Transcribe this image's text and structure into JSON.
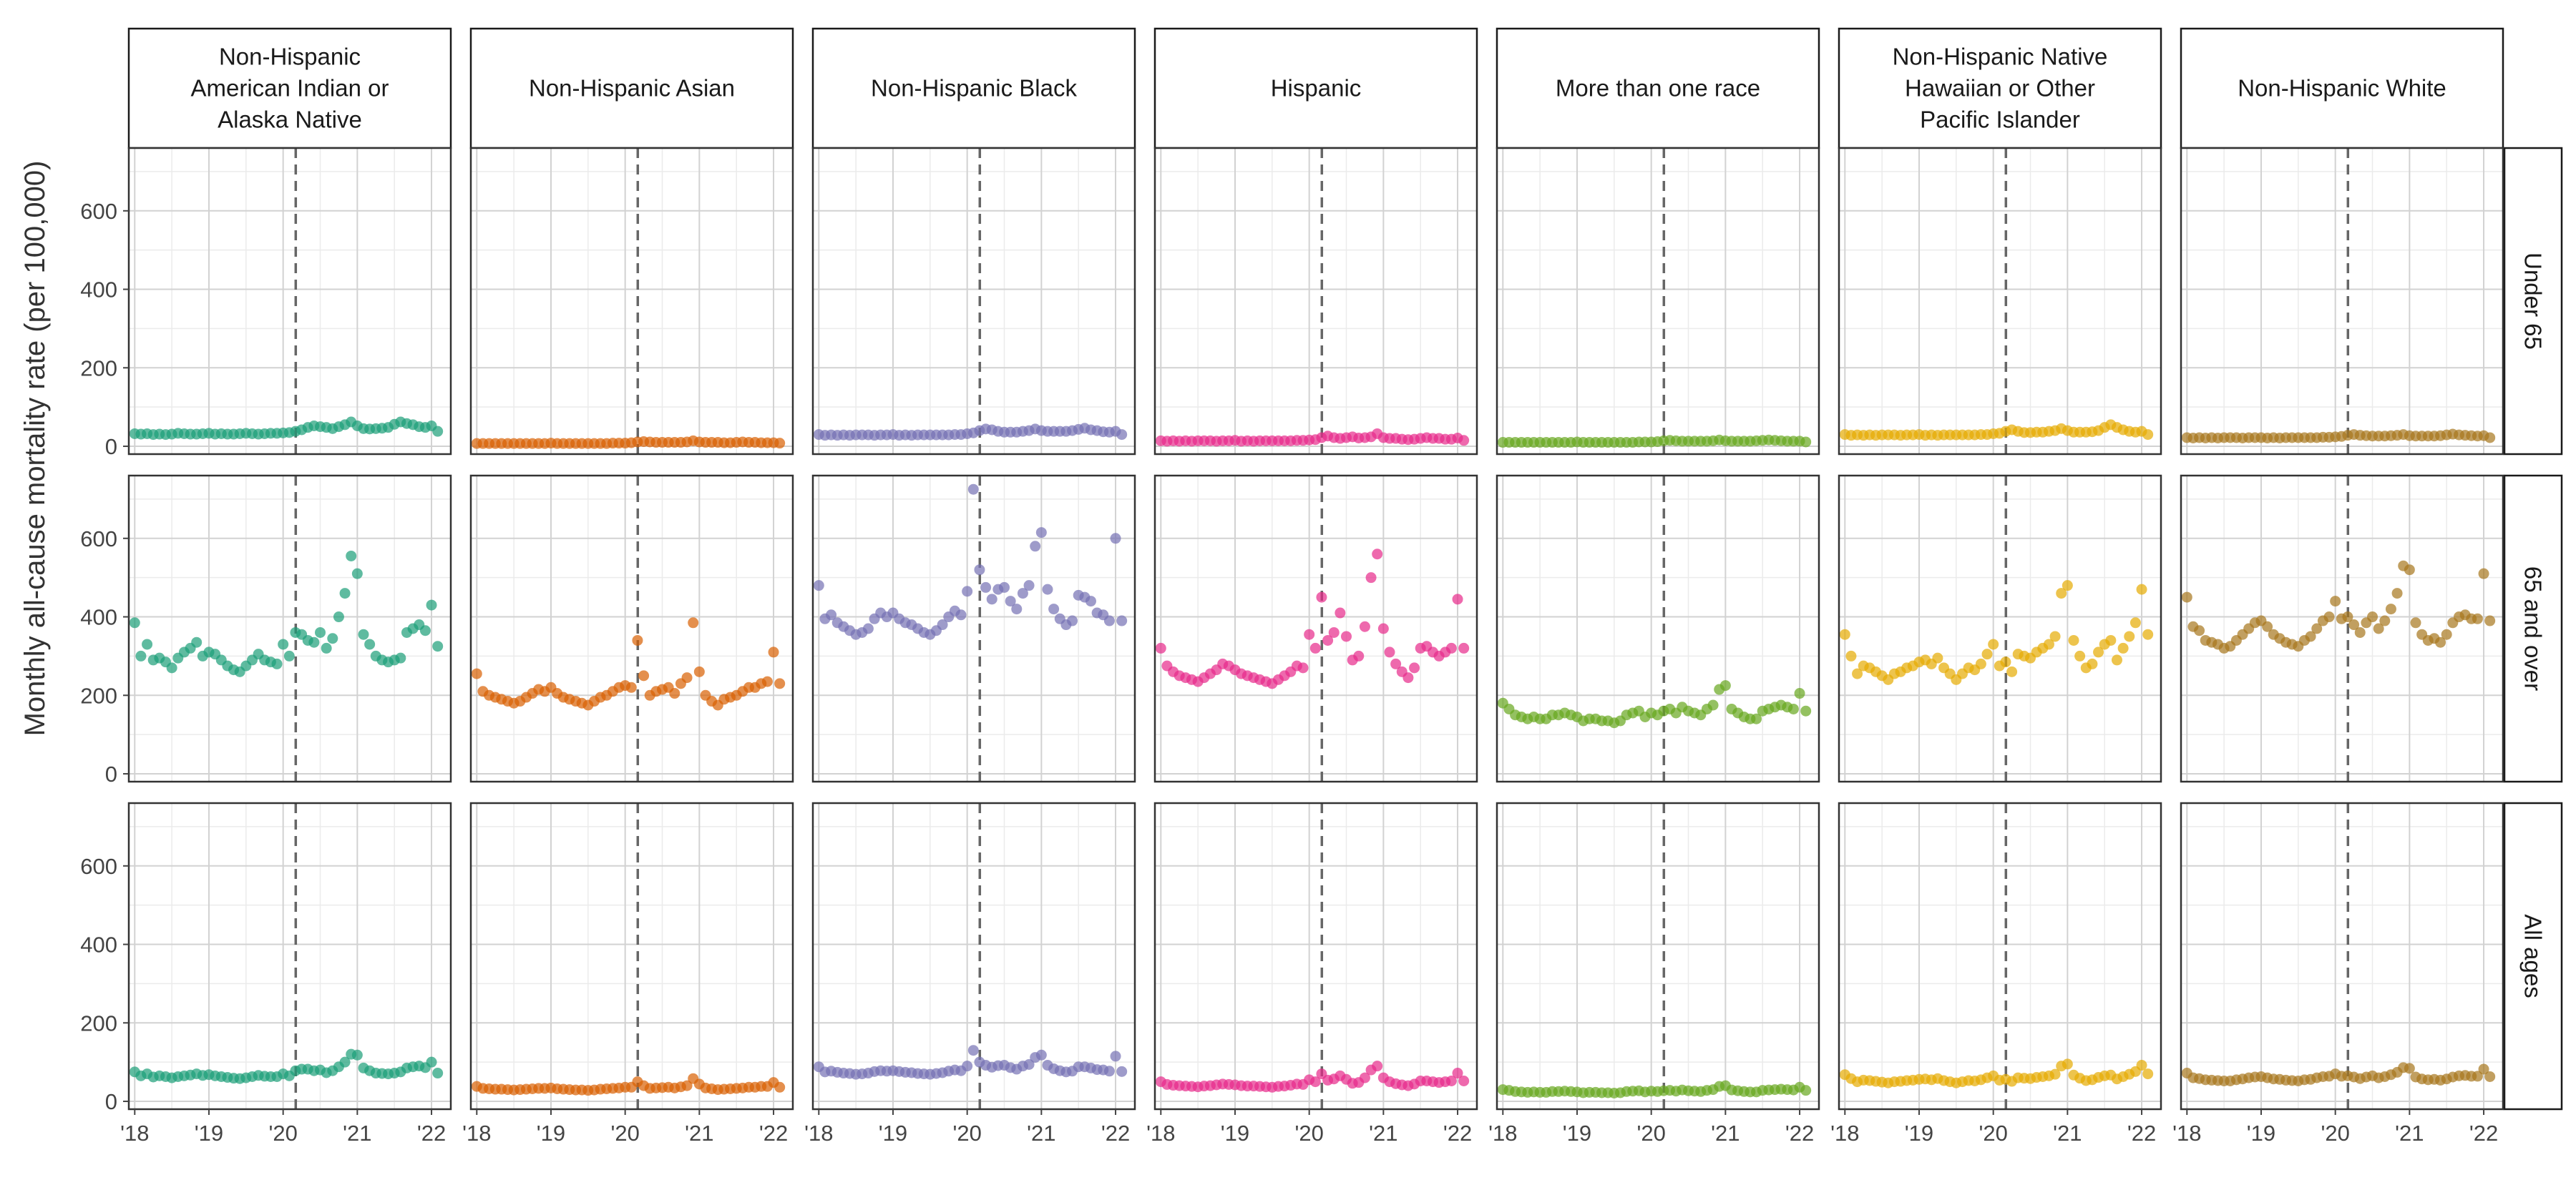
{
  "chart_data": {
    "type": "scatter",
    "layout": "facet-grid",
    "title": "",
    "ylabel": "Monthly all-cause mortality rate (per 100,000)",
    "xlabel": "",
    "ylim": [
      -20,
      760
    ],
    "yticks": [
      0,
      200,
      400,
      600
    ],
    "xlim": [
      2017.92,
      2022.26
    ],
    "xticks": [
      {
        "value": 2018,
        "label": "'18"
      },
      {
        "value": 2019,
        "label": "'19"
      },
      {
        "value": 2020,
        "label": "'20"
      },
      {
        "value": 2021,
        "label": "'21"
      },
      {
        "value": 2022,
        "label": "'22"
      }
    ],
    "vline": {
      "x": 2020.17,
      "style": "dashed"
    },
    "grid": true,
    "x_start": "2018-01",
    "x_step": "month",
    "columns": [
      {
        "label": "Non-Hispanic American Indian or Alaska Native",
        "lines": [
          "Non-Hispanic",
          "American Indian or",
          "Alaska Native"
        ],
        "color": "#1b9e77"
      },
      {
        "label": "Non-Hispanic Asian",
        "lines": [
          "Non-Hispanic Asian"
        ],
        "color": "#d95f02"
      },
      {
        "label": "Non-Hispanic Black",
        "lines": [
          "Non-Hispanic Black"
        ],
        "color": "#7570b3"
      },
      {
        "label": "Hispanic",
        "lines": [
          "Hispanic"
        ],
        "color": "#e7298a"
      },
      {
        "label": "More than one race",
        "lines": [
          "More than one race"
        ],
        "color": "#66a61e"
      },
      {
        "label": "Non-Hispanic Native Hawaiian or Other Pacific Islander",
        "lines": [
          "Non-Hispanic Native",
          "Hawaiian or Other",
          "Pacific Islander"
        ],
        "color": "#e6ab02"
      },
      {
        "label": "Non-Hispanic White",
        "lines": [
          "Non-Hispanic White"
        ],
        "color": "#a6761d"
      }
    ],
    "rows": [
      {
        "label": "Under 65"
      },
      {
        "label": "65 and over"
      },
      {
        "label": "All ages"
      }
    ],
    "panels": [
      [
        [
          32,
          31,
          32,
          30,
          31,
          30,
          31,
          33,
          32,
          31,
          31,
          32,
          33,
          31,
          32,
          31,
          31,
          32,
          33,
          32,
          31,
          32,
          33,
          33,
          34,
          35,
          38,
          42,
          48,
          52,
          50,
          48,
          45,
          50,
          55,
          62,
          52,
          45,
          44,
          45,
          46,
          48,
          56,
          62,
          58,
          55,
          50,
          48,
          52,
          38
        ],
        [
          7,
          7,
          7,
          7,
          7,
          7,
          7,
          7,
          7,
          7,
          7,
          7,
          8,
          7,
          7,
          7,
          7,
          7,
          7,
          7,
          7,
          7,
          8,
          8,
          8,
          9,
          11,
          12,
          11,
          10,
          10,
          10,
          10,
          10,
          11,
          14,
          11,
          10,
          10,
          10,
          9,
          9,
          10,
          11,
          10,
          10,
          9,
          9,
          9,
          8
        ],
        [
          30,
          28,
          29,
          28,
          29,
          28,
          29,
          29,
          29,
          28,
          29,
          29,
          30,
          28,
          29,
          28,
          29,
          29,
          29,
          29,
          29,
          29,
          30,
          30,
          32,
          34,
          40,
          44,
          42,
          38,
          36,
          36,
          36,
          38,
          40,
          44,
          40,
          38,
          38,
          38,
          38,
          40,
          43,
          46,
          42,
          40,
          37,
          36,
          38,
          30
        ],
        [
          14,
          13,
          14,
          13,
          14,
          13,
          14,
          14,
          14,
          13,
          14,
          14,
          15,
          13,
          14,
          13,
          14,
          14,
          14,
          14,
          14,
          14,
          15,
          15,
          16,
          17,
          22,
          26,
          22,
          20,
          22,
          24,
          21,
          22,
          24,
          32,
          22,
          20,
          20,
          18,
          17,
          18,
          20,
          22,
          20,
          20,
          18,
          18,
          21,
          15
        ],
        [
          10,
          10,
          10,
          10,
          10,
          10,
          10,
          10,
          10,
          10,
          10,
          10,
          11,
          10,
          10,
          10,
          10,
          10,
          10,
          10,
          10,
          10,
          11,
          11,
          11,
          12,
          14,
          15,
          14,
          13,
          13,
          13,
          13,
          13,
          14,
          16,
          14,
          13,
          13,
          13,
          13,
          14,
          15,
          16,
          15,
          14,
          13,
          13,
          13,
          11
        ],
        [
          30,
          28,
          29,
          28,
          29,
          28,
          29,
          29,
          29,
          28,
          29,
          29,
          30,
          28,
          29,
          28,
          29,
          29,
          29,
          29,
          29,
          29,
          30,
          30,
          32,
          33,
          38,
          42,
          38,
          35,
          35,
          36,
          36,
          38,
          40,
          45,
          40,
          36,
          36,
          36,
          37,
          40,
          48,
          55,
          48,
          42,
          38,
          36,
          38,
          30
        ],
        [
          22,
          21,
          22,
          21,
          22,
          21,
          22,
          22,
          22,
          21,
          22,
          22,
          22,
          21,
          22,
          21,
          22,
          22,
          22,
          22,
          22,
          22,
          23,
          23,
          24,
          25,
          28,
          30,
          28,
          27,
          26,
          26,
          26,
          27,
          28,
          30,
          27,
          26,
          26,
          26,
          26,
          27,
          29,
          31,
          29,
          28,
          27,
          26,
          27,
          22
        ]
      ],
      [
        [
          385,
          300,
          330,
          290,
          295,
          285,
          270,
          295,
          310,
          320,
          335,
          300,
          310,
          305,
          290,
          275,
          265,
          260,
          275,
          290,
          305,
          290,
          285,
          280,
          330,
          300,
          360,
          355,
          340,
          335,
          360,
          320,
          345,
          400,
          460,
          555,
          510,
          355,
          330,
          300,
          290,
          285,
          290,
          295,
          360,
          370,
          380,
          365,
          430,
          325
        ],
        [
          255,
          210,
          200,
          195,
          190,
          185,
          180,
          185,
          195,
          205,
          215,
          210,
          220,
          205,
          195,
          190,
          185,
          180,
          175,
          185,
          195,
          200,
          210,
          220,
          225,
          220,
          340,
          250,
          200,
          210,
          215,
          220,
          205,
          230,
          245,
          385,
          260,
          200,
          185,
          175,
          190,
          195,
          200,
          210,
          220,
          220,
          230,
          235,
          310,
          230
        ],
        [
          480,
          395,
          405,
          385,
          375,
          365,
          355,
          360,
          370,
          395,
          410,
          400,
          410,
          395,
          385,
          380,
          370,
          360,
          355,
          365,
          380,
          400,
          415,
          405,
          465,
          725,
          520,
          475,
          445,
          470,
          475,
          440,
          420,
          460,
          480,
          580,
          615,
          470,
          420,
          395,
          380,
          390,
          455,
          450,
          440,
          410,
          405,
          390,
          600,
          390
        ],
        [
          320,
          275,
          260,
          250,
          245,
          240,
          235,
          245,
          255,
          265,
          280,
          275,
          265,
          255,
          250,
          245,
          240,
          235,
          230,
          240,
          250,
          260,
          275,
          270,
          355,
          320,
          450,
          340,
          360,
          410,
          350,
          290,
          300,
          375,
          500,
          560,
          370,
          310,
          280,
          260,
          245,
          270,
          320,
          325,
          310,
          300,
          310,
          320,
          445,
          320
        ],
        [
          180,
          165,
          150,
          145,
          140,
          145,
          140,
          140,
          150,
          150,
          155,
          150,
          145,
          135,
          140,
          140,
          135,
          135,
          130,
          135,
          150,
          155,
          160,
          145,
          155,
          150,
          160,
          165,
          155,
          170,
          160,
          155,
          150,
          165,
          175,
          215,
          225,
          165,
          155,
          145,
          140,
          140,
          160,
          165,
          170,
          175,
          170,
          165,
          205,
          160
        ],
        [
          355,
          300,
          255,
          275,
          270,
          260,
          250,
          240,
          255,
          260,
          270,
          275,
          285,
          290,
          280,
          295,
          270,
          255,
          240,
          255,
          270,
          265,
          280,
          305,
          330,
          275,
          285,
          260,
          305,
          300,
          295,
          310,
          320,
          330,
          350,
          460,
          480,
          340,
          300,
          270,
          280,
          310,
          330,
          340,
          290,
          320,
          350,
          385,
          470,
          355
        ],
        [
          450,
          375,
          365,
          340,
          335,
          330,
          320,
          325,
          340,
          355,
          370,
          385,
          390,
          375,
          355,
          345,
          335,
          330,
          325,
          340,
          350,
          370,
          390,
          400,
          440,
          395,
          400,
          380,
          360,
          385,
          400,
          370,
          390,
          420,
          460,
          530,
          520,
          385,
          355,
          340,
          345,
          335,
          355,
          385,
          400,
          405,
          395,
          395,
          510,
          390
        ]
      ],
      [
        [
          75,
          65,
          70,
          62,
          65,
          63,
          60,
          63,
          65,
          67,
          70,
          66,
          68,
          65,
          63,
          61,
          59,
          58,
          60,
          63,
          66,
          64,
          63,
          63,
          70,
          65,
          78,
          82,
          82,
          78,
          80,
          73,
          78,
          88,
          100,
          120,
          118,
          85,
          78,
          72,
          71,
          70,
          72,
          75,
          85,
          88,
          90,
          86,
          100,
          72
        ],
        [
          38,
          33,
          32,
          31,
          31,
          30,
          29,
          30,
          31,
          32,
          33,
          33,
          34,
          32,
          31,
          30,
          29,
          29,
          28,
          29,
          31,
          32,
          33,
          34,
          36,
          36,
          50,
          40,
          33,
          34,
          35,
          36,
          34,
          37,
          40,
          58,
          44,
          34,
          32,
          30,
          31,
          32,
          33,
          34,
          36,
          36,
          38,
          38,
          48,
          36
        ],
        [
          88,
          75,
          77,
          74,
          72,
          71,
          69,
          70,
          72,
          76,
          78,
          77,
          78,
          76,
          74,
          73,
          71,
          70,
          69,
          71,
          73,
          77,
          80,
          78,
          90,
          130,
          100,
          92,
          87,
          91,
          92,
          86,
          82,
          90,
          94,
          112,
          118,
          92,
          83,
          78,
          75,
          77,
          88,
          88,
          85,
          81,
          80,
          77,
          115,
          76
        ],
        [
          50,
          43,
          41,
          40,
          39,
          38,
          37,
          39,
          40,
          42,
          44,
          43,
          42,
          40,
          39,
          39,
          38,
          37,
          36,
          38,
          39,
          41,
          44,
          43,
          55,
          50,
          70,
          54,
          57,
          65,
          56,
          46,
          48,
          60,
          80,
          90,
          60,
          50,
          45,
          42,
          40,
          44,
          52,
          52,
          50,
          48,
          50,
          52,
          72,
          52
        ],
        [
          30,
          28,
          25,
          24,
          23,
          24,
          23,
          23,
          25,
          25,
          26,
          25,
          24,
          22,
          23,
          23,
          22,
          22,
          21,
          22,
          25,
          26,
          27,
          24,
          26,
          25,
          27,
          28,
          26,
          29,
          27,
          26,
          25,
          28,
          30,
          38,
          40,
          29,
          27,
          25,
          24,
          24,
          28,
          29,
          30,
          31,
          30,
          29,
          36,
          28
        ],
        [
          68,
          58,
          50,
          54,
          53,
          51,
          49,
          47,
          50,
          51,
          53,
          54,
          56,
          57,
          55,
          58,
          53,
          50,
          47,
          50,
          53,
          52,
          55,
          60,
          65,
          54,
          56,
          51,
          60,
          59,
          58,
          61,
          63,
          65,
          69,
          90,
          95,
          67,
          59,
          53,
          55,
          61,
          65,
          67,
          57,
          63,
          69,
          76,
          92,
          70
        ],
        [
          72,
          60,
          58,
          55,
          54,
          53,
          52,
          52,
          55,
          57,
          60,
          62,
          63,
          60,
          57,
          56,
          54,
          53,
          52,
          55,
          56,
          60,
          63,
          64,
          70,
          64,
          65,
          62,
          58,
          62,
          65,
          60,
          63,
          68,
          74,
          86,
          84,
          62,
          57,
          55,
          56,
          54,
          57,
          62,
          65,
          66,
          64,
          64,
          82,
          63
        ]
      ]
    ]
  }
}
